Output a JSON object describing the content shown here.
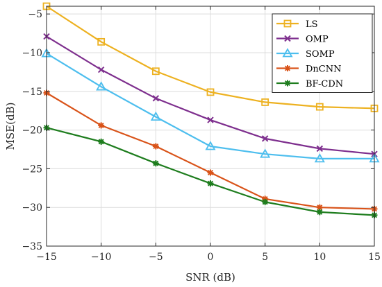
{
  "chart_data": {
    "type": "line",
    "title": "",
    "xlabel": "SNR (dB)",
    "ylabel": "MSE(dB)",
    "x": [
      -15,
      -10,
      -5,
      0,
      5,
      10,
      15
    ],
    "xticks": [
      -15,
      -10,
      -5,
      0,
      5,
      10,
      15
    ],
    "xtick_labels": [
      "−15",
      "−10",
      "−5",
      "0",
      "5",
      "10",
      "15"
    ],
    "yticks": [
      -35,
      -30,
      -25,
      -20,
      -15,
      -10,
      -5
    ],
    "ytick_labels": [
      "−35",
      "−30",
      "−25",
      "−20",
      "−15",
      "−10",
      "−5"
    ],
    "xlim": [
      -15,
      15
    ],
    "ylim": [
      -35,
      -4
    ],
    "grid": true,
    "legend_position": "top-right",
    "series": [
      {
        "name": "LS",
        "color": "#EDB120",
        "marker": "square",
        "values": [
          -4.0,
          -8.6,
          -12.4,
          -15.1,
          -16.4,
          -17.0,
          -17.2
        ]
      },
      {
        "name": "OMP",
        "color": "#7E2F8E",
        "marker": "x",
        "values": [
          -7.9,
          -12.2,
          -15.9,
          -18.7,
          -21.1,
          -22.4,
          -23.1
        ]
      },
      {
        "name": "SOMP",
        "color": "#4DBEEE",
        "marker": "triangle",
        "values": [
          -10.1,
          -14.4,
          -18.3,
          -22.1,
          -23.1,
          -23.7,
          -23.7
        ]
      },
      {
        "name": "DnCNN",
        "color": "#D95319",
        "marker": "star",
        "values": [
          -15.2,
          -19.4,
          -22.1,
          -25.5,
          -28.9,
          -30.0,
          -30.2
        ]
      },
      {
        "name": "BF-CDN",
        "color": "#1E7D1E",
        "marker": "star",
        "values": [
          -19.7,
          -21.5,
          -24.3,
          -26.9,
          -29.3,
          -30.6,
          -31.0
        ]
      }
    ]
  }
}
